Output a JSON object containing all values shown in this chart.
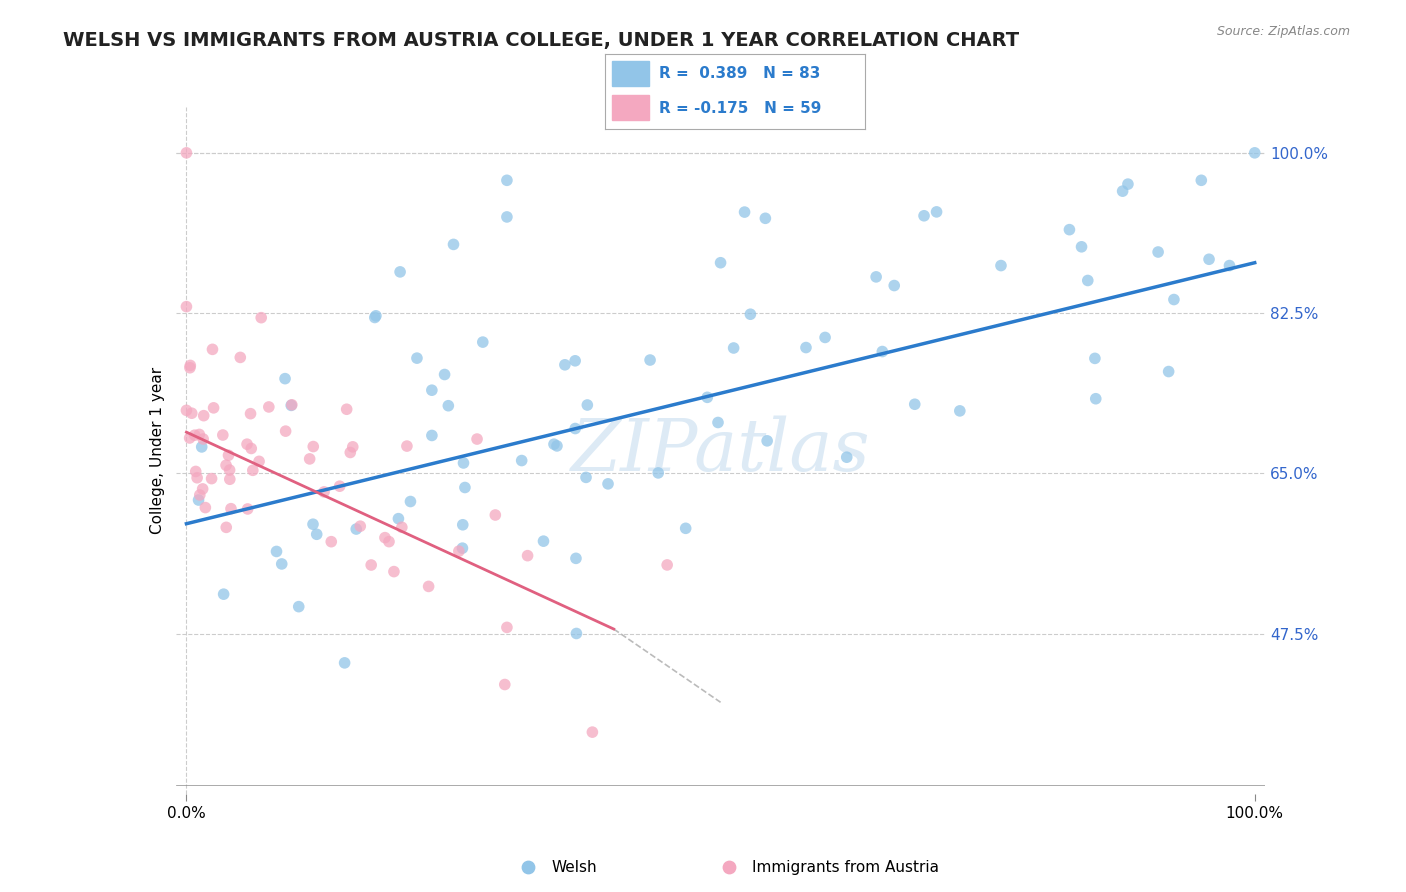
{
  "title": "WELSH VS IMMIGRANTS FROM AUSTRIA COLLEGE, UNDER 1 YEAR CORRELATION CHART",
  "source_text": "Source: ZipAtlas.com",
  "ylabel": "College, Under 1 year",
  "ytick_labels": [
    "47.5%",
    "65.0%",
    "82.5%",
    "100.0%"
  ],
  "ytick_values": [
    0.475,
    0.65,
    0.825,
    1.0
  ],
  "xlim": [
    -0.01,
    1.01
  ],
  "ylim": [
    0.3,
    1.05
  ],
  "welsh_color": "#92C5E8",
  "austria_color": "#F4A8C0",
  "welsh_line_color": "#2B7BCC",
  "austria_line_color": "#E06080",
  "legend_welsh_label": "Welsh",
  "legend_austria_label": "Immigrants from Austria",
  "R_welsh": 0.389,
  "N_welsh": 83,
  "R_austria": -0.175,
  "N_austria": 59,
  "watermark_text": "ZIPatlas",
  "title_fontsize": 14,
  "axis_label_fontsize": 11,
  "tick_fontsize": 11,
  "welsh_line_x0": 0.0,
  "welsh_line_y0": 0.595,
  "welsh_line_x1": 1.0,
  "welsh_line_y1": 0.88,
  "austria_line_x0": 0.0,
  "austria_line_y0": 0.695,
  "austria_line_x1": 0.4,
  "austria_line_y1": 0.48,
  "austria_line_ext_x1": 0.5,
  "austria_line_ext_y1": 0.4
}
